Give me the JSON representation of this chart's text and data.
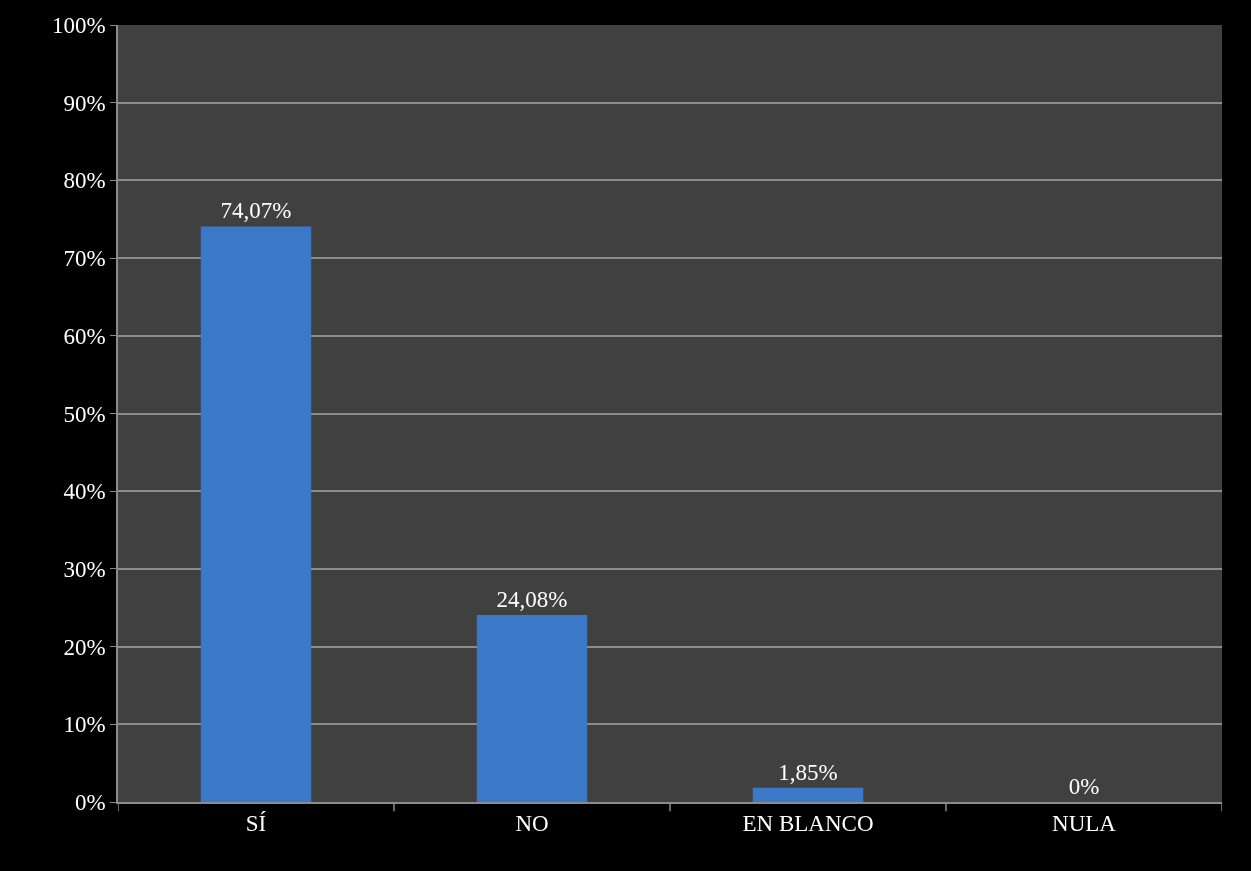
{
  "chart_data": {
    "type": "bar",
    "categories": [
      "SÍ",
      "NO",
      "EN BLANCO",
      "NULA"
    ],
    "values": [
      74.07,
      24.08,
      1.85,
      0
    ],
    "value_labels": [
      "74,07%",
      "24,08%",
      "1,85%",
      "0%"
    ],
    "color": "#3c78c8",
    "ylim": [
      0,
      100
    ],
    "yticks": [
      {
        "value": 0,
        "label": "0%"
      },
      {
        "value": 10,
        "label": "10%"
      },
      {
        "value": 20,
        "label": "20%"
      },
      {
        "value": 30,
        "label": "30%"
      },
      {
        "value": 40,
        "label": "40%"
      },
      {
        "value": 50,
        "label": "50%"
      },
      {
        "value": 60,
        "label": "60%"
      },
      {
        "value": 70,
        "label": "70%"
      },
      {
        "value": 80,
        "label": "80%"
      },
      {
        "value": 90,
        "label": "90%"
      },
      {
        "value": 100,
        "label": "100%"
      }
    ],
    "grid": "y"
  }
}
